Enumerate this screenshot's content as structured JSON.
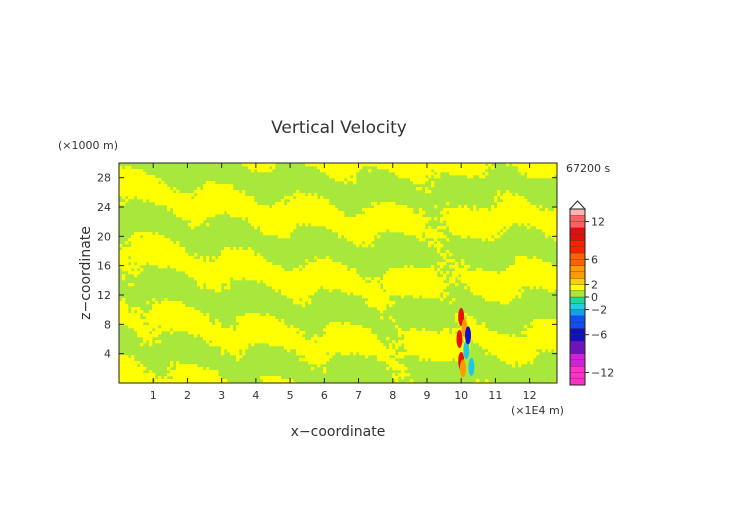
{
  "chart_data": {
    "type": "heatmap",
    "title": "Vertical Velocity",
    "xlabel": "x−coordinate",
    "ylabel": "z−coordinate",
    "x_unit": "(×1E4 m)",
    "y_unit": "(×1000 m)",
    "time_label": "67200 s",
    "xlim": [
      0,
      12.8
    ],
    "ylim": [
      0,
      30
    ],
    "x_ticks": [
      "1",
      "2",
      "3",
      "4",
      "5",
      "6",
      "7",
      "8",
      "9",
      "10",
      "11",
      "12"
    ],
    "y_ticks": [
      "4",
      "8",
      "12",
      "16",
      "20",
      "24",
      "28"
    ],
    "colorbar": {
      "min": -14,
      "max": 14,
      "step": 1,
      "tick_labels": [
        "12",
        "6",
        "2",
        "0",
        "−2",
        "−6",
        "−12"
      ],
      "colors": {
        "yellow": "#ffff00",
        "light_green": "#a8e83c",
        "orange": "#ff9a00",
        "red": "#e81000",
        "cyan": "#20c8e8",
        "blue": "#1010d0",
        "magenta": "#ff20c0",
        "pink": "#ffb0b0"
      }
    }
  }
}
